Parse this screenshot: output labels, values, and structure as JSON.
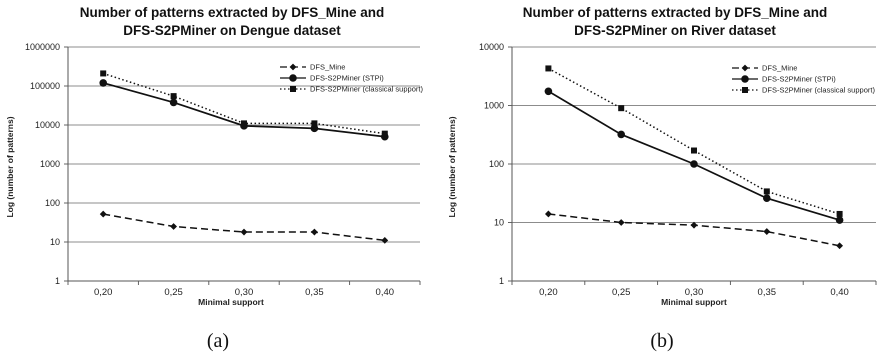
{
  "chart_data": [
    {
      "type": "line",
      "title_lines": [
        "Number of patterns extracted by DFS_Mine and",
        "DFS-S2PMiner on Dengue dataset"
      ],
      "xlabel": "Minimal support",
      "ylabel": "Log (number of patterns)",
      "y_scale": "log",
      "y_ticks": [
        "1",
        "10",
        "100",
        "1000",
        "10000",
        "100000",
        "1000000"
      ],
      "ylim": [
        1,
        1000000
      ],
      "categories": [
        "0,20",
        "0,25",
        "0,30",
        "0,35",
        "0,40"
      ],
      "legend_position": "top-right",
      "grid": true,
      "series": [
        {
          "name": "DFS_Mine",
          "values": [
            52,
            25,
            18,
            18,
            11
          ],
          "style": "dashed",
          "marker": "diamond"
        },
        {
          "name": "DFS-S2PMiner (STPi)",
          "values": [
            120000,
            38000,
            9500,
            8200,
            5000
          ],
          "style": "solid",
          "marker": "circle"
        },
        {
          "name": "DFS-S2PMiner (classical support)",
          "values": [
            210000,
            55000,
            11000,
            11000,
            6000
          ],
          "style": "dotted",
          "marker": "square"
        }
      ],
      "caption": "(a)"
    },
    {
      "type": "line",
      "title_lines": [
        "Number of patterns extracted by DFS_Mine and",
        "DFS-S2PMiner on River dataset"
      ],
      "xlabel": "Minimal support",
      "ylabel": "Log (number of patterns)",
      "y_scale": "log",
      "y_ticks": [
        "1",
        "10",
        "100",
        "1000",
        "10000"
      ],
      "ylim": [
        1,
        10000
      ],
      "categories": [
        "0,20",
        "0,25",
        "0,30",
        "0,35",
        "0,40"
      ],
      "legend_position": "top-right",
      "grid": true,
      "series": [
        {
          "name": "DFS_Mine",
          "values": [
            14,
            10,
            9,
            7,
            4
          ],
          "style": "dashed",
          "marker": "diamond"
        },
        {
          "name": "DFS-S2PMiner (STPi)",
          "values": [
            1750,
            320,
            100,
            26,
            11
          ],
          "style": "solid",
          "marker": "circle"
        },
        {
          "name": "DFS-S2PMiner (classical support)",
          "values": [
            4300,
            900,
            170,
            34,
            14
          ],
          "style": "dotted",
          "marker": "square"
        }
      ],
      "caption": "(b)"
    }
  ]
}
